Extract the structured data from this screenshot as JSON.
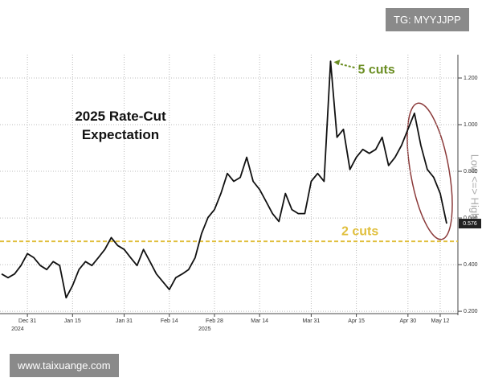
{
  "chart_data": {
    "type": "line",
    "title": "2025 Rate-Cut Expectation",
    "y_axis_label": "Low <=> High",
    "categories": [
      null,
      null,
      null,
      null,
      "Dec 31",
      null,
      null,
      null,
      null,
      null,
      null,
      "Jan 15",
      null,
      null,
      null,
      null,
      null,
      null,
      null,
      "Jan 31",
      null,
      null,
      null,
      null,
      null,
      null,
      "Feb 14",
      null,
      null,
      null,
      null,
      null,
      null,
      "Feb 28",
      null,
      null,
      null,
      null,
      null,
      null,
      "Mar 14",
      null,
      null,
      null,
      null,
      null,
      null,
      null,
      "Mar 31",
      null,
      null,
      null,
      null,
      null,
      null,
      "Apr 15",
      null,
      null,
      null,
      null,
      null,
      null,
      null,
      "Apr 30",
      null,
      null,
      null,
      null,
      "May 12",
      null
    ],
    "year_labels": [
      {
        "label": "2024",
        "under": "Dec 31"
      },
      {
        "label": "2025",
        "under": "Feb 28"
      }
    ],
    "series": [
      {
        "color": "#111111",
        "values": [
          0.36,
          0.344,
          0.36,
          0.396,
          0.447,
          0.43,
          0.396,
          0.379,
          0.413,
          0.396,
          0.258,
          0.31,
          0.379,
          0.413,
          0.396,
          0.43,
          0.465,
          0.516,
          0.482,
          0.465,
          0.43,
          0.396,
          0.465,
          0.413,
          0.36,
          0.327,
          0.293,
          0.344,
          0.36,
          0.379,
          0.43,
          0.533,
          0.602,
          0.636,
          0.705,
          0.791,
          0.757,
          0.774,
          0.86,
          0.757,
          0.722,
          0.671,
          0.619,
          0.585,
          0.705,
          0.636,
          0.619,
          0.619,
          0.757,
          0.791,
          0.757,
          1.272,
          0.946,
          0.98,
          0.808,
          0.86,
          0.894,
          0.877,
          0.894,
          0.946,
          0.825,
          0.86,
          0.911,
          0.98,
          1.049,
          0.911,
          0.808,
          0.774,
          0.705,
          0.576
        ]
      }
    ],
    "end_label": "0.576",
    "ylim": [
      0.19,
      1.3
    ],
    "yticks": [
      {
        "value": 0.2,
        "label": "0.200"
      },
      {
        "value": 0.4,
        "label": "0.400"
      },
      {
        "value": 0.6,
        "label": "0.600"
      },
      {
        "value": 0.8,
        "label": "0.800"
      },
      {
        "value": 1.0,
        "label": "1.000"
      },
      {
        "value": 1.2,
        "label": "1.200"
      }
    ],
    "grid": true,
    "reference_lines": [
      {
        "value": 0.5,
        "label": "2 cuts",
        "color": "#e0bf3c"
      }
    ],
    "peak_annotation": {
      "label": "5 cuts",
      "color": "#6b8e23"
    }
  },
  "watermarks": {
    "top": "TG: MYYJJPP",
    "bottom": "www.taixuange.com"
  }
}
